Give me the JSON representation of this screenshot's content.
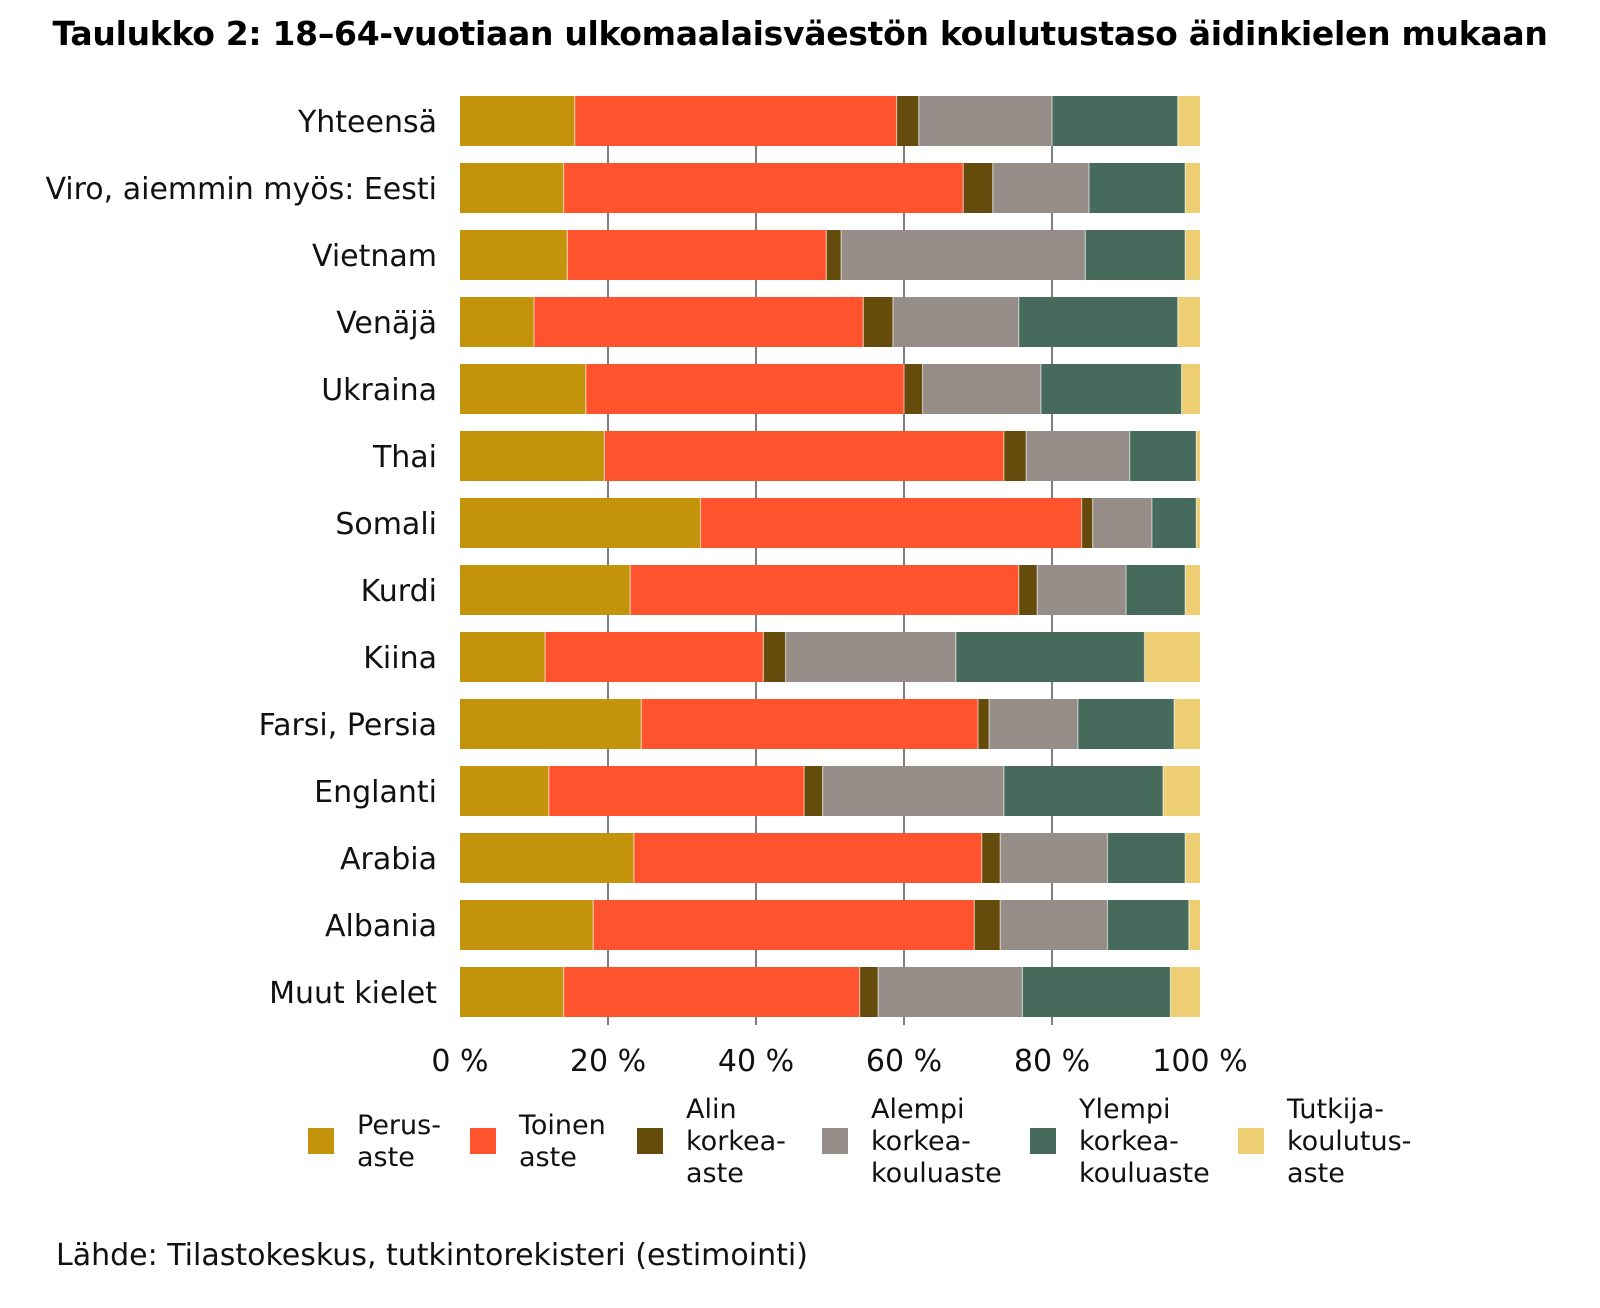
{
  "chart_data": {
    "type": "bar",
    "orientation": "horizontal",
    "stacked": true,
    "normalized": true,
    "title": "Taulukko 2: 18–64-vuotiaan ulkomaalaisväestön koulutustaso äidinkielen mukaan",
    "xlabel": "",
    "ylabel": "",
    "xlim": [
      0,
      100
    ],
    "xticks": [
      0,
      20,
      40,
      60,
      80,
      100
    ],
    "xtick_labels": [
      "0 %",
      "20 %",
      "40 %",
      "60 %",
      "80 %",
      "100 %"
    ],
    "grid": "vertical",
    "legend_position": "bottom",
    "categories": [
      "Yhteensä",
      "Viro, aiemmin myös: Eesti",
      "Vietnam",
      "Venäjä",
      "Ukraina",
      "Thai",
      "Somali",
      "Kurdi",
      "Kiina",
      "Farsi, Persia",
      "Englanti",
      "Arabia",
      "Albania",
      "Muut kielet"
    ],
    "series": [
      {
        "name": "Perusaste",
        "legend_lines": [
          "Perus-",
          "aste"
        ],
        "color": "#C4930C",
        "values": [
          15.5,
          14,
          14.5,
          10,
          17,
          19.5,
          32.5,
          23,
          11.5,
          24.5,
          12,
          23.5,
          18,
          14
        ]
      },
      {
        "name": "Toinen aste",
        "legend_lines": [
          "Toinen",
          "aste"
        ],
        "color": "#FF532E",
        "values": [
          43.5,
          54,
          35,
          44.5,
          43,
          54,
          51.5,
          52.5,
          29.5,
          45.5,
          34.5,
          47,
          51.5,
          40
        ]
      },
      {
        "name": "Alin korkea-aste",
        "legend_lines": [
          "Alin",
          "korkea-",
          "aste"
        ],
        "color": "#654C0C",
        "values": [
          3,
          4,
          2,
          4,
          2.5,
          3,
          1.5,
          2.5,
          3,
          1.5,
          2.5,
          2.5,
          3.5,
          2.5
        ]
      },
      {
        "name": "Alempi korkeakouluaste",
        "legend_lines": [
          "Alempi",
          "korkea-",
          "kouluaste"
        ],
        "color": "#978D88",
        "values": [
          18,
          13,
          33,
          17,
          16,
          14,
          8,
          12,
          23,
          12,
          24.5,
          14.5,
          14.5,
          19.5
        ]
      },
      {
        "name": "Ylempi korkeakouluaste",
        "legend_lines": [
          "Ylempi",
          "korkea-",
          "kouluaste"
        ],
        "color": "#466B5C",
        "values": [
          17,
          13,
          13.5,
          21.5,
          19,
          9,
          6,
          8,
          25.5,
          13,
          21.5,
          10.5,
          11,
          20
        ]
      },
      {
        "name": "Tutkijakoulutusaste",
        "legend_lines": [
          "Tutkija-",
          "koulutus-",
          "aste"
        ],
        "color": "#EDCE72",
        "values": [
          3,
          2,
          2,
          3,
          2.5,
          0.5,
          0.5,
          2,
          7.5,
          3.5,
          5,
          2,
          1.5,
          4
        ]
      }
    ]
  },
  "source": "Lähde: Tilastokeskus, tutkintorekisteri (estimointi)"
}
